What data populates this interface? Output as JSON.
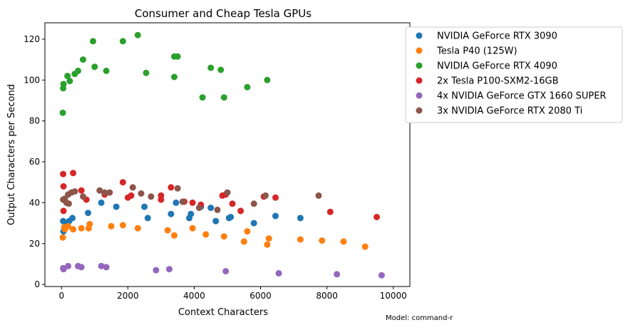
{
  "chart_data": {
    "type": "scatter",
    "title": "Consumer and Cheap Tesla GPUs",
    "xlabel": "Context Characters",
    "ylabel": "Output Characters per Second",
    "xlim": [
      -500,
      10500
    ],
    "ylim": [
      -1,
      128
    ],
    "xticks": [
      0,
      2000,
      4000,
      6000,
      8000,
      10000
    ],
    "yticks": [
      0,
      20,
      40,
      60,
      80,
      100,
      120
    ],
    "grid": false,
    "legend_position": "outside-right",
    "annotation": "Model: command-r",
    "series": [
      {
        "name": "NVIDIA GeForce RTX 3090",
        "color": "#1f77b4",
        "points": [
          [
            50,
            31
          ],
          [
            60,
            26
          ],
          [
            150,
            29
          ],
          [
            230,
            31
          ],
          [
            330,
            32.5
          ],
          [
            800,
            35
          ],
          [
            1200,
            40
          ],
          [
            1650,
            38
          ],
          [
            2500,
            38
          ],
          [
            2600,
            32.5
          ],
          [
            3300,
            34.5
          ],
          [
            3450,
            40
          ],
          [
            3850,
            32.5
          ],
          [
            3900,
            34.5
          ],
          [
            4200,
            38
          ],
          [
            4500,
            37.5
          ],
          [
            4650,
            31
          ],
          [
            5050,
            32.5
          ],
          [
            5100,
            33
          ],
          [
            5800,
            30
          ],
          [
            6450,
            33.5
          ],
          [
            7200,
            32.5
          ]
        ]
      },
      {
        "name": "Tesla P40 (125W)",
        "color": "#ff7f0e",
        "points": [
          [
            40,
            23
          ],
          [
            80,
            28
          ],
          [
            100,
            27
          ],
          [
            200,
            28.5
          ],
          [
            350,
            27
          ],
          [
            600,
            27.5
          ],
          [
            820,
            27.5
          ],
          [
            850,
            29.5
          ],
          [
            1500,
            28.5
          ],
          [
            1850,
            29
          ],
          [
            2300,
            27.5
          ],
          [
            3200,
            26.5
          ],
          [
            3400,
            24
          ],
          [
            3950,
            27.5
          ],
          [
            4350,
            24.5
          ],
          [
            4900,
            23.5
          ],
          [
            5500,
            21
          ],
          [
            5600,
            26
          ],
          [
            6200,
            19.5
          ],
          [
            6250,
            22.5
          ],
          [
            7200,
            22
          ],
          [
            7850,
            21.5
          ],
          [
            8500,
            21
          ],
          [
            9150,
            18.5
          ]
        ]
      },
      {
        "name": "NVIDIA GeForce RTX 4090",
        "color": "#2ca02c",
        "points": [
          [
            40,
            84
          ],
          [
            50,
            96
          ],
          [
            60,
            98
          ],
          [
            180,
            102
          ],
          [
            250,
            99.5
          ],
          [
            400,
            103
          ],
          [
            500,
            104.5
          ],
          [
            650,
            110
          ],
          [
            950,
            119
          ],
          [
            1000,
            106.5
          ],
          [
            1350,
            104.5
          ],
          [
            1850,
            119
          ],
          [
            2300,
            122
          ],
          [
            2550,
            103.5
          ],
          [
            3400,
            111.5
          ],
          [
            3400,
            101.5
          ],
          [
            3500,
            111.5
          ],
          [
            4250,
            91.5
          ],
          [
            4500,
            106
          ],
          [
            4800,
            105
          ],
          [
            4900,
            91.5
          ],
          [
            5600,
            96.5
          ],
          [
            6200,
            100
          ]
        ]
      },
      {
        "name": "2x Tesla P100-SXM2-16GB",
        "color": "#d62728",
        "points": [
          [
            50,
            54
          ],
          [
            60,
            48
          ],
          [
            60,
            36
          ],
          [
            350,
            54.5
          ],
          [
            600,
            46
          ],
          [
            750,
            41.5
          ],
          [
            1300,
            44
          ],
          [
            1850,
            50
          ],
          [
            2000,
            42.5
          ],
          [
            2100,
            43.5
          ],
          [
            3000,
            41.5
          ],
          [
            3000,
            43.5
          ],
          [
            3300,
            47.5
          ],
          [
            3700,
            40.5
          ],
          [
            3950,
            40
          ],
          [
            4200,
            39
          ],
          [
            4850,
            43.5
          ],
          [
            4950,
            44
          ],
          [
            5150,
            39.5
          ],
          [
            5400,
            36
          ],
          [
            6100,
            43
          ],
          [
            6450,
            42.5
          ],
          [
            8100,
            35.5
          ],
          [
            9500,
            33
          ]
        ]
      },
      {
        "name": "4x NVIDIA GeForce GTX 1660 SUPER",
        "color": "#9467bd",
        "points": [
          [
            50,
            8
          ],
          [
            60,
            7.5
          ],
          [
            200,
            9
          ],
          [
            500,
            9
          ],
          [
            600,
            8.5
          ],
          [
            1200,
            9
          ],
          [
            1350,
            8.5
          ],
          [
            2850,
            7
          ],
          [
            3250,
            7.5
          ],
          [
            4950,
            6.5
          ],
          [
            6550,
            5.5
          ],
          [
            8300,
            5
          ],
          [
            9650,
            4.5
          ]
        ]
      },
      {
        "name": "3x NVIDIA GeForce RTX 2080 Ti",
        "color": "#8c564b",
        "points": [
          [
            50,
            41.5
          ],
          [
            100,
            42
          ],
          [
            150,
            40
          ],
          [
            200,
            44
          ],
          [
            220,
            39.5
          ],
          [
            300,
            45
          ],
          [
            400,
            45.5
          ],
          [
            650,
            43
          ],
          [
            1150,
            46
          ],
          [
            1300,
            45
          ],
          [
            1450,
            45
          ],
          [
            2150,
            47.5
          ],
          [
            2400,
            44.5
          ],
          [
            2700,
            43
          ],
          [
            3500,
            47
          ],
          [
            3650,
            40.5
          ],
          [
            4150,
            37.5
          ],
          [
            4700,
            36.5
          ],
          [
            5000,
            45
          ],
          [
            5800,
            39.5
          ],
          [
            6150,
            43.5
          ],
          [
            7750,
            43.5
          ]
        ]
      }
    ]
  }
}
